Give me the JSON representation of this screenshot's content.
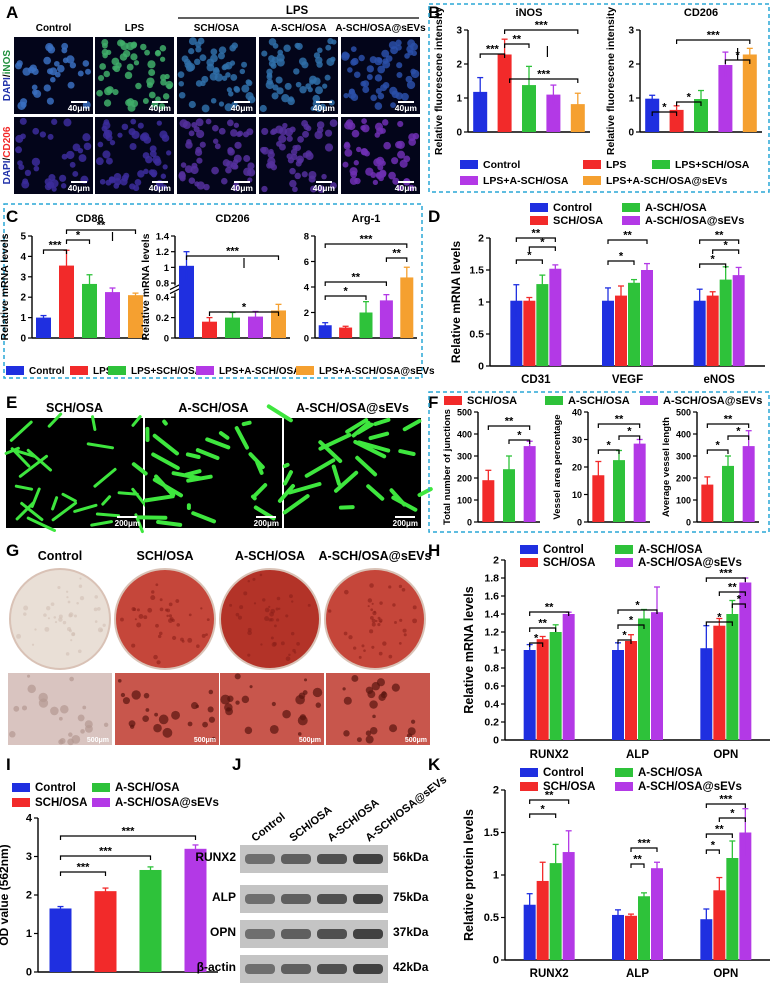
{
  "colors": {
    "blue": "#1f2fe0",
    "red": "#f22a2a",
    "green": "#2ec23a",
    "purple": "#b339e6",
    "orange": "#f5a030",
    "dashed_border": "#2aa7d6",
    "micro_blue": "#2233aa",
    "micro_green": "#1f8f3c",
    "stain_red": "#b0322b",
    "vessel_green": "#3ee63e"
  },
  "panel_labels": [
    "A",
    "B",
    "C",
    "D",
    "E",
    "F",
    "G",
    "H",
    "I",
    "J",
    "K"
  ],
  "panelA": {
    "group_header": "LPS",
    "columns": [
      "Control",
      "LPS",
      "SCH/OSA",
      "A-SCH/OSA",
      "A-SCH/OSA@sEVs"
    ],
    "row_labels": [
      {
        "first": "DAPI",
        "sep": "/",
        "second": "iNOS"
      },
      {
        "first": "DAPI",
        "sep": "/",
        "second": "CD206"
      }
    ],
    "scale": "40μm"
  },
  "panelB_legend": [
    "Control",
    "LPS",
    "LPS+SCH/OSA",
    "LPS+A-SCH/OSA",
    "LPS+A-SCH/OSA@sEVs"
  ],
  "panelC_legend": [
    "Control",
    "LPS",
    "LPS+SCH/OSA",
    "LPS+A-SCH/OSA",
    "LPS+A-SCH/OSA@sEVs"
  ],
  "panelD_legend": [
    "Control",
    "A-SCH/OSA",
    "SCH/OSA",
    "A-SCH/OSA@sEVs"
  ],
  "panelE": {
    "labels": [
      "SCH/OSA",
      "A-SCH/OSA",
      "A-SCH/OSA@sEVs"
    ],
    "scale": "200μm"
  },
  "panelF_legend": [
    "SCH/OSA",
    "A-SCH/OSA",
    "A-SCH/OSA@sEVs"
  ],
  "panelG": {
    "labels": [
      "Control",
      "SCH/OSA",
      "A-SCH/OSA",
      "A-SCH/OSA@sEVs"
    ],
    "scale": "500μm"
  },
  "panelH_legend": [
    "Control",
    "A-SCH/OSA",
    "SCH/OSA",
    "A-SCH/OSA@sEVs"
  ],
  "panelI_legend": [
    "Control",
    "A-SCH/OSA",
    "SCH/OSA",
    "A-SCH/OSA@sEVs"
  ],
  "panelJ": {
    "lanes": [
      "Control",
      "SCH/OSA",
      "A-SCH/OSA",
      "A-SCH/OSA@sEVs"
    ],
    "proteins": [
      "RUNX2",
      "ALP",
      "OPN",
      "β-actin"
    ],
    "sizes": [
      "56kDa",
      "75kDa",
      "37kDa",
      "42kDa"
    ]
  },
  "panelK_legend": [
    "Control",
    "A-SCH/OSA",
    "SCH/OSA",
    "A-SCH/OSA@sEVs"
  ],
  "chart_data": [
    {
      "id": "B1",
      "type": "bar",
      "title": "iNOS",
      "ylabel": "Relative fluorescene intensity",
      "ylim": [
        0,
        3
      ],
      "yticks": [
        0,
        1,
        2,
        3
      ],
      "categories": [
        "Control",
        "LPS",
        "LPS+SCH/OSA",
        "LPS+A-SCH/OSA",
        "LPS+A-SCH/OSA@sEVs"
      ],
      "values": [
        1.18,
        2.28,
        1.38,
        1.1,
        0.82
      ],
      "errors": [
        0.42,
        0.45,
        0.55,
        0.28,
        0.32
      ],
      "sig": [
        "***",
        "**",
        "***",
        "***"
      ]
    },
    {
      "id": "B2",
      "type": "bar",
      "title": "CD206",
      "ylabel": "Relative fluorescene intensity",
      "ylim": [
        0,
        3
      ],
      "yticks": [
        0,
        1,
        2,
        3
      ],
      "categories": [
        "Control",
        "LPS",
        "LPS+SCH/OSA",
        "LPS+A-SCH/OSA",
        "LPS+A-SCH/OSA@sEVs"
      ],
      "values": [
        0.98,
        0.65,
        0.97,
        1.97,
        2.28
      ],
      "errors": [
        0.1,
        0.12,
        0.25,
        0.38,
        0.18
      ],
      "sig": [
        "*",
        "*",
        "***",
        "*"
      ]
    },
    {
      "id": "C1",
      "type": "bar",
      "title": "CD86",
      "ylabel": "Relative mRNA levels",
      "ylim": [
        0,
        5
      ],
      "yticks": [
        0,
        1,
        2,
        3,
        4,
        5
      ],
      "categories": [
        "Control",
        "LPS",
        "LPS+SCH/OSA",
        "LPS+A-SCH/OSA",
        "LPS+A-SCH/OSA@sEVs"
      ],
      "values": [
        1.0,
        3.55,
        2.65,
        2.25,
        2.1
      ],
      "errors": [
        0.1,
        0.75,
        0.45,
        0.2,
        0.1
      ],
      "sig": [
        "***",
        "*",
        "**"
      ]
    },
    {
      "id": "C2",
      "type": "bar",
      "title": "CD206",
      "ylabel": "Relative mRNA levels",
      "ylim": [
        0,
        1.4
      ],
      "yticks": [
        0,
        0.2,
        0.4,
        0.8,
        1.0,
        1.2,
        1.4
      ],
      "axis_break": [
        0.45,
        0.75
      ],
      "categories": [
        "Control",
        "LPS",
        "LPS+SCH/OSA",
        "LPS+A-SCH/OSA",
        "LPS+A-SCH/OSA@sEVs"
      ],
      "values": [
        1.02,
        0.16,
        0.2,
        0.21,
        0.27
      ],
      "errors": [
        0.18,
        0.04,
        0.05,
        0.05,
        0.06
      ],
      "sig": [
        "***",
        "*"
      ]
    },
    {
      "id": "C3",
      "type": "bar",
      "title": "Arg-1",
      "ylabel": "",
      "ylim": [
        0,
        8
      ],
      "yticks": [
        0,
        2,
        4,
        6,
        8
      ],
      "categories": [
        "Control",
        "LPS",
        "LPS+SCH/OSA",
        "LPS+A-SCH/OSA",
        "LPS+A-SCH/OSA@sEVs"
      ],
      "values": [
        1.0,
        0.82,
        2.0,
        2.95,
        4.75
      ],
      "errors": [
        0.2,
        0.1,
        0.85,
        0.45,
        0.8
      ],
      "sig": [
        "***",
        "**",
        "**",
        "*"
      ]
    },
    {
      "id": "D",
      "type": "bar",
      "ylabel": "Relative mRNA levels",
      "ylim": [
        0,
        2.0
      ],
      "yticks": [
        0,
        0.5,
        1.0,
        1.5,
        2.0
      ],
      "categories": [
        "CD31",
        "VEGF",
        "eNOS"
      ],
      "series": [
        {
          "name": "Control",
          "values": [
            1.02,
            1.02,
            1.02
          ],
          "errors": [
            0.25,
            0.2,
            0.18
          ]
        },
        {
          "name": "SCH/OSA",
          "values": [
            1.02,
            1.1,
            1.1
          ],
          "errors": [
            0.05,
            0.15,
            0.06
          ]
        },
        {
          "name": "A-SCH/OSA",
          "values": [
            1.28,
            1.3,
            1.35
          ],
          "errors": [
            0.14,
            0.05,
            0.2
          ]
        },
        {
          "name": "A-SCH/OSA@sEVs",
          "values": [
            1.52,
            1.5,
            1.42
          ],
          "errors": [
            0.06,
            0.1,
            0.12
          ]
        }
      ],
      "sig": [
        [
          "**",
          "*",
          "*"
        ],
        [
          "**",
          "*"
        ],
        [
          "**",
          "*",
          "*"
        ]
      ]
    },
    {
      "id": "F1",
      "type": "bar",
      "ylabel": "Total number of junctions",
      "ylim": [
        0,
        500
      ],
      "yticks": [
        0,
        100,
        200,
        300,
        400,
        500
      ],
      "categories": [
        "SCH/OSA",
        "A-SCH/OSA",
        "A-SCH/OSA@sEVs"
      ],
      "values": [
        190,
        240,
        345
      ],
      "errors": [
        45,
        60,
        22
      ],
      "sig": [
        "**",
        "*"
      ]
    },
    {
      "id": "F2",
      "type": "bar",
      "ylabel": "Vessel area percentage",
      "ylim": [
        0,
        40
      ],
      "yticks": [
        0,
        10,
        20,
        30,
        40
      ],
      "categories": [
        "SCH/OSA",
        "A-SCH/OSA",
        "A-SCH/OSA@sEVs"
      ],
      "values": [
        17,
        22.5,
        28.5
      ],
      "errors": [
        5,
        3.5,
        1.5
      ],
      "sig": [
        "**",
        "*",
        "*"
      ]
    },
    {
      "id": "F3",
      "type": "bar",
      "ylabel": "Average vessel length",
      "ylim": [
        0,
        500
      ],
      "yticks": [
        0,
        100,
        200,
        300,
        400,
        500
      ],
      "categories": [
        "SCH/OSA",
        "A-SCH/OSA",
        "A-SCH/OSA@sEVs"
      ],
      "values": [
        170,
        255,
        345
      ],
      "errors": [
        35,
        45,
        70
      ],
      "sig": [
        "**",
        "*",
        "*"
      ]
    },
    {
      "id": "H",
      "type": "bar",
      "ylabel": "OD value (562nm)",
      "ylim": [
        0,
        4
      ],
      "yticks": [
        0,
        1,
        2,
        3,
        4
      ],
      "categories": [
        "Control",
        "SCH/OSA",
        "A-SCH/OSA",
        "A-SCH/OSA@sEVs"
      ],
      "values": [
        1.65,
        2.1,
        2.65,
        3.2
      ],
      "errors": [
        0.05,
        0.08,
        0.08,
        0.1
      ],
      "sig": [
        "***",
        "***",
        "***"
      ]
    },
    {
      "id": "I",
      "type": "bar",
      "ylabel": "Relative mRNA levels",
      "ylim": [
        0,
        2.0
      ],
      "yticks": [
        0,
        0.2,
        0.4,
        0.6,
        0.8,
        1.0,
        1.2,
        1.4,
        1.6,
        1.8,
        2.0
      ],
      "categories": [
        "RUNX2",
        "ALP",
        "OPN"
      ],
      "series": [
        {
          "name": "Control",
          "values": [
            1.0,
            1.0,
            1.02
          ],
          "errors": [
            0.06,
            0.08,
            0.25
          ]
        },
        {
          "name": "SCH/OSA",
          "values": [
            1.12,
            1.1,
            1.27
          ],
          "errors": [
            0.03,
            0.07,
            0.08
          ]
        },
        {
          "name": "A-SCH/OSA",
          "values": [
            1.2,
            1.35,
            1.4
          ],
          "errors": [
            0.08,
            0.1,
            0.15
          ]
        },
        {
          "name": "A-SCH/OSA@sEVs",
          "values": [
            1.4,
            1.42,
            1.75
          ],
          "errors": [
            0.02,
            0.28,
            0.05
          ]
        }
      ],
      "sig": [
        [
          "**",
          "**",
          "*"
        ],
        [
          "*",
          "*",
          "*"
        ],
        [
          "***",
          "**",
          "*",
          "*"
        ]
      ]
    },
    {
      "id": "K",
      "type": "bar",
      "ylabel": "Relative protein levels",
      "ylim": [
        0,
        2.0
      ],
      "yticks": [
        0,
        0.5,
        1.0,
        1.5,
        2.0
      ],
      "categories": [
        "RUNX2",
        "ALP",
        "OPN"
      ],
      "series": [
        {
          "name": "Control",
          "values": [
            0.65,
            0.53,
            0.48
          ],
          "errors": [
            0.13,
            0.06,
            0.12
          ]
        },
        {
          "name": "SCH/OSA",
          "values": [
            0.93,
            0.52,
            0.82
          ],
          "errors": [
            0.22,
            0.02,
            0.15
          ]
        },
        {
          "name": "A-SCH/OSA",
          "values": [
            1.14,
            0.75,
            1.2
          ],
          "errors": [
            0.22,
            0.04,
            0.2
          ]
        },
        {
          "name": "A-SCH/OSA@sEVs",
          "values": [
            1.27,
            1.08,
            1.5
          ],
          "errors": [
            0.25,
            0.07,
            0.28
          ]
        }
      ],
      "sig": [
        [
          "**",
          "*"
        ],
        [
          "***",
          "**"
        ],
        [
          "***",
          "*",
          "**",
          "*"
        ]
      ]
    }
  ]
}
